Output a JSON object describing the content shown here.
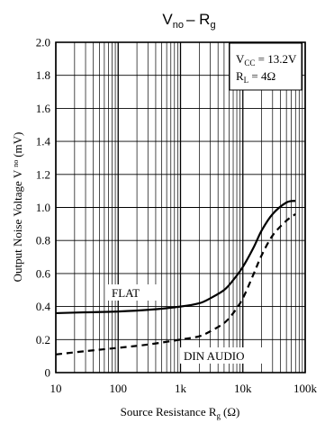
{
  "chart_data": {
    "type": "line",
    "title": "V",
    "title_sub": "no",
    "title_rest": "– R",
    "title_sub2": "g",
    "xlabel": "Source Resistance R",
    "xlabel_sub": "g",
    "xlabel_unit": "(Ω)",
    "ylabel": "Output Noise Voltage V",
    "ylabel_sub": "no",
    "ylabel_unit": "(mV)",
    "xscale": "log",
    "xlim": [
      10,
      100000
    ],
    "ylim": [
      0,
      2.0
    ],
    "grid": true,
    "xticks": [
      10,
      100,
      1000,
      10000,
      100000
    ],
    "xtick_labels": [
      "10",
      "100",
      "1k",
      "10k",
      "100k"
    ],
    "yticks": [
      0,
      0.2,
      0.4,
      0.6,
      0.8,
      1.0,
      1.2,
      1.4,
      1.6,
      1.8,
      2.0
    ],
    "ytick_labels": [
      "0",
      "0.2",
      "0.4",
      "0.6",
      "0.8",
      "1.0",
      "1.2",
      "1.4",
      "1.6",
      "1.8",
      "2.0"
    ],
    "conditions": {
      "vcc": {
        "label": "V",
        "sub": "CC",
        "value": " = 13.2V"
      },
      "rl": {
        "label": "R",
        "sub": "L",
        "value": " = 4Ω"
      }
    },
    "series": [
      {
        "name": "FLAT",
        "style": "solid",
        "color": "#000000",
        "x": [
          10,
          30,
          100,
          300,
          1000,
          2000,
          3000,
          5000,
          7000,
          10000,
          15000,
          20000,
          30000,
          50000,
          70000
        ],
        "y": [
          0.36,
          0.365,
          0.37,
          0.38,
          0.4,
          0.42,
          0.45,
          0.5,
          0.56,
          0.64,
          0.76,
          0.86,
          0.96,
          1.03,
          1.04
        ]
      },
      {
        "name": "DIN AUDIO",
        "style": "dashed",
        "color": "#000000",
        "x": [
          10,
          30,
          100,
          300,
          1000,
          2000,
          3000,
          5000,
          7000,
          10000,
          15000,
          20000,
          30000,
          50000,
          70000
        ],
        "y": [
          0.11,
          0.13,
          0.15,
          0.17,
          0.2,
          0.22,
          0.25,
          0.3,
          0.36,
          0.45,
          0.6,
          0.71,
          0.83,
          0.92,
          0.96
        ]
      }
    ]
  }
}
